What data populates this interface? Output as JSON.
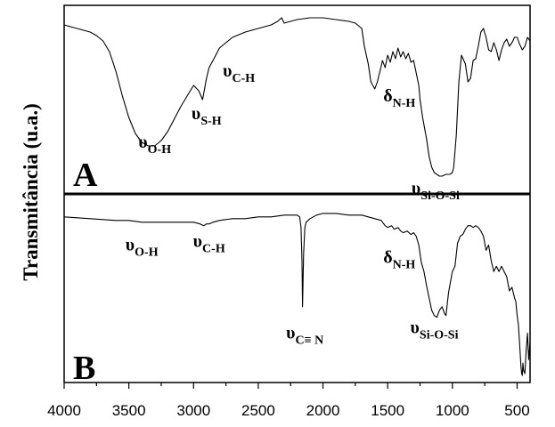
{
  "chart_data": {
    "type": "line",
    "ylabel": "Transmitância (u.a.)",
    "xlim": [
      4000,
      400
    ],
    "x_ticks": [
      4000,
      3500,
      3000,
      2500,
      2000,
      1500,
      1000,
      500
    ],
    "panels": [
      {
        "label": "A",
        "ylim": [
          0,
          100
        ],
        "series": [
          {
            "x": [
              4000,
              3900,
              3800,
              3750,
              3700,
              3650,
              3600,
              3550,
              3500,
              3450,
              3400,
              3350,
              3300,
              3250,
              3200,
              3150,
              3100,
              3050,
              3000,
              2960,
              2930,
              2920,
              2900,
              2880,
              2850,
              2800,
              2700,
              2600,
              2500,
              2400,
              2350,
              2320,
              2300,
              2250,
              2200,
              2100,
              2000,
              1900,
              1800,
              1750,
              1700,
              1680,
              1650,
              1630,
              1600,
              1580,
              1560,
              1540,
              1520,
              1500,
              1480,
              1460,
              1440,
              1420,
              1400,
              1380,
              1360,
              1340,
              1320,
              1300,
              1280,
              1260,
              1250,
              1230,
              1200,
              1180,
              1160,
              1140,
              1120,
              1100,
              1080,
              1050,
              1020,
              1000,
              990,
              970,
              950,
              930,
              900,
              880,
              860,
              840,
              820,
              800,
              780,
              760,
              740,
              720,
              700,
              680,
              660,
              640,
              620,
              600,
              580,
              560,
              540,
              520,
              500,
              480,
              460,
              440,
              420,
              400
            ],
            "y": [
              92,
              90,
              88,
              86,
              83,
              77,
              66,
              52,
              40,
              31,
              26,
              24,
              24,
              27,
              32,
              39,
              46,
              52,
              58,
              55,
              50,
              54,
              62,
              68,
              72,
              79,
              85,
              88,
              90,
              92,
              94,
              96,
              93,
              94,
              95,
              96,
              96,
              95,
              94,
              93,
              90,
              80,
              70,
              60,
              56,
              60,
              66,
              72,
              68,
              75,
              71,
              77,
              73,
              79,
              74,
              77,
              73,
              76,
              71,
              72,
              65,
              58,
              50,
              40,
              28,
              18,
              12,
              9,
              8,
              7,
              7,
              8,
              8,
              9,
              12,
              30,
              60,
              75,
              70,
              60,
              62,
              72,
              73,
              80,
              88,
              90,
              85,
              78,
              77,
              82,
              78,
              72,
              78,
              82,
              84,
              80,
              82,
              85,
              85,
              81,
              78,
              80,
              85,
              83
            ]
          }
        ],
        "annotations": [
          {
            "main": "υ",
            "sub": "O-H",
            "at": [
              3300,
              23
            ]
          },
          {
            "main": "υ",
            "sub": "S-H",
            "at": [
              2900,
              39
            ]
          },
          {
            "main": "υ",
            "sub": "C-H",
            "at": [
              2650,
              63
            ]
          },
          {
            "main": "δ",
            "sub": "N-H",
            "at": [
              1410,
              49
            ]
          },
          {
            "main": "υ",
            "sub": "Si-O-Si",
            "at": [
              1130,
              -3
            ]
          }
        ]
      },
      {
        "label": "B",
        "ylim": [
          0,
          100
        ],
        "series": [
          {
            "x": [
              4000,
              3800,
              3600,
              3500,
              3400,
              3300,
              3200,
              3100,
              3000,
              2950,
              2920,
              2900,
              2880,
              2850,
              2800,
              2700,
              2600,
              2500,
              2400,
              2300,
              2250,
              2200,
              2180,
              2170,
              2162,
              2158,
              2150,
              2140,
              2130,
              2100,
              2050,
              2000,
              1950,
              1900,
              1800,
              1700,
              1650,
              1600,
              1550,
              1520,
              1500,
              1470,
              1450,
              1420,
              1400,
              1380,
              1350,
              1320,
              1300,
              1280,
              1260,
              1240,
              1220,
              1200,
              1180,
              1160,
              1140,
              1120,
              1100,
              1080,
              1060,
              1050,
              1030,
              1000,
              980,
              960,
              940,
              920,
              900,
              880,
              860,
              840,
              820,
              800,
              780,
              760,
              740,
              720,
              700,
              680,
              660,
              640,
              620,
              600,
              580,
              560,
              540,
              520,
              510,
              500,
              490,
              480,
              470,
              465,
              460,
              455,
              450,
              440,
              430,
              420,
              410,
              400
            ],
            "y": [
              91,
              90,
              89,
              89,
              88,
              88,
              88,
              88,
              88,
              87,
              86,
              87,
              87,
              88,
              89,
              90,
              90,
              91,
              91,
              92,
              92,
              92,
              91,
              85,
              66,
              40,
              70,
              85,
              88,
              90,
              92,
              93,
              93,
              93,
              92,
              92,
              91,
              90,
              89,
              86,
              85,
              86,
              84,
              85,
              83,
              82,
              83,
              81,
              82,
              80,
              75,
              65,
              60,
              52,
              45,
              38,
              35,
              34,
              38,
              40,
              36,
              35,
              48,
              60,
              63,
              76,
              80,
              81,
              84,
              86,
              86,
              85,
              86,
              85,
              83,
              80,
              72,
              75,
              66,
              60,
              63,
              60,
              63,
              60,
              57,
              49,
              51,
              45,
              43,
              35,
              30,
              18,
              6,
              2,
              1,
              8,
              4,
              2,
              15,
              25,
              10,
              20
            ]
          }
        ],
        "annotations": [
          {
            "main": "υ",
            "sub": "O-H",
            "at": [
              3400,
              72
            ]
          },
          {
            "main": "υ",
            "sub": "C-H",
            "at": [
              2880,
              74
            ]
          },
          {
            "main": "υ",
            "sub": "C≡ N",
            "at": [
              2140,
              22
            ]
          },
          {
            "main": "δ",
            "sub": "N-H",
            "at": [
              1410,
              65
            ]
          },
          {
            "main": "υ",
            "sub": "Si-O-Si",
            "at": [
              1140,
              25
            ]
          }
        ]
      }
    ]
  }
}
